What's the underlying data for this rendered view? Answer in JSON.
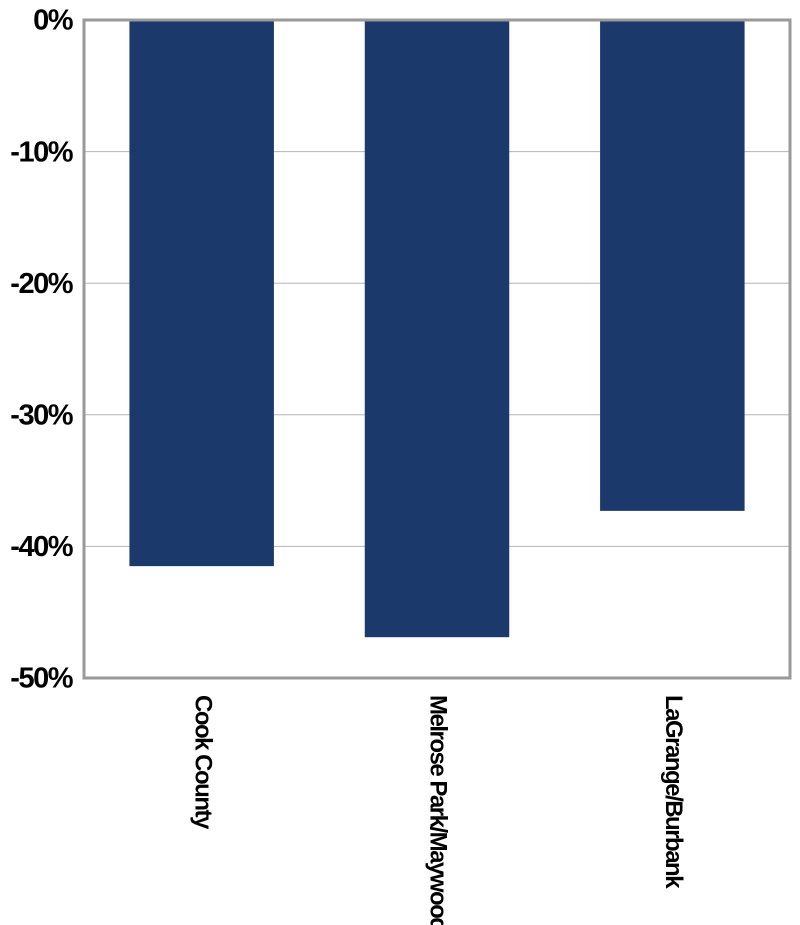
{
  "chart_data": {
    "type": "bar",
    "categories": [
      "Cook County",
      "Melrose Park/Maywood",
      "LaGrange/Burbank"
    ],
    "values": [
      -41.5,
      -46.9,
      -37.3
    ],
    "color": "#1b3a6b",
    "ylim": [
      -50,
      0
    ],
    "yticks": [
      {
        "value": 0,
        "label": "0%"
      },
      {
        "value": -10,
        "label": "-10%"
      },
      {
        "value": -20,
        "label": "-20%"
      },
      {
        "value": -30,
        "label": "-30%"
      },
      {
        "value": -40,
        "label": "-40%"
      },
      {
        "value": -50,
        "label": "-50%"
      }
    ],
    "grid": true
  }
}
